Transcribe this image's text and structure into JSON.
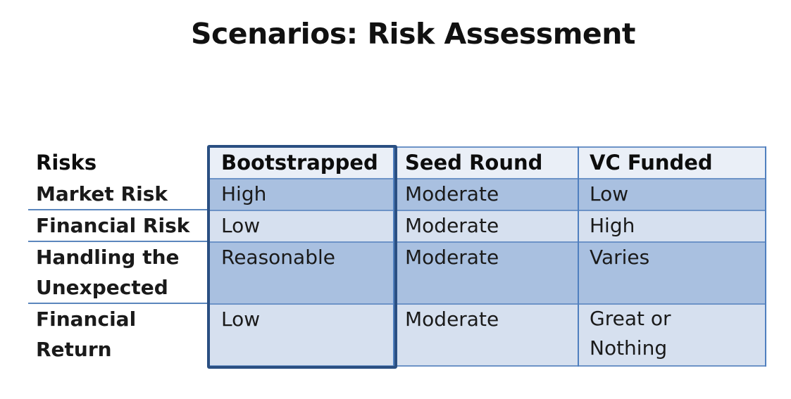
{
  "title": "Scenarios: Risk Assessment",
  "table": {
    "corner_label": "Risks",
    "columns": [
      "Bootstrapped",
      "Seed Round",
      "VC Funded"
    ],
    "rows": [
      {
        "label": "Market Risk",
        "values": [
          "High",
          "Moderate",
          "Low"
        ]
      },
      {
        "label": "Financial Risk",
        "values": [
          "Low",
          "Moderate",
          "High"
        ]
      },
      {
        "label": "Handling the Unexpected",
        "label_lines": [
          "Handling the",
          "Unexpected"
        ],
        "values": [
          "Reasonable",
          "Moderate",
          "Varies"
        ]
      },
      {
        "label": "Financial Return",
        "label_lines": [
          "Financial",
          "Return"
        ],
        "values": [
          "Low",
          "Moderate",
          "Great or Nothing"
        ],
        "value_lines_last": [
          "Great or",
          "Nothing"
        ]
      }
    ]
  },
  "colors": {
    "header_fill": "#eaeff7",
    "row_dark": "#a9c0e0",
    "row_light": "#d6e0ef",
    "grid_line": "#4f7fbf",
    "highlight_frame": "#2a4f82"
  }
}
